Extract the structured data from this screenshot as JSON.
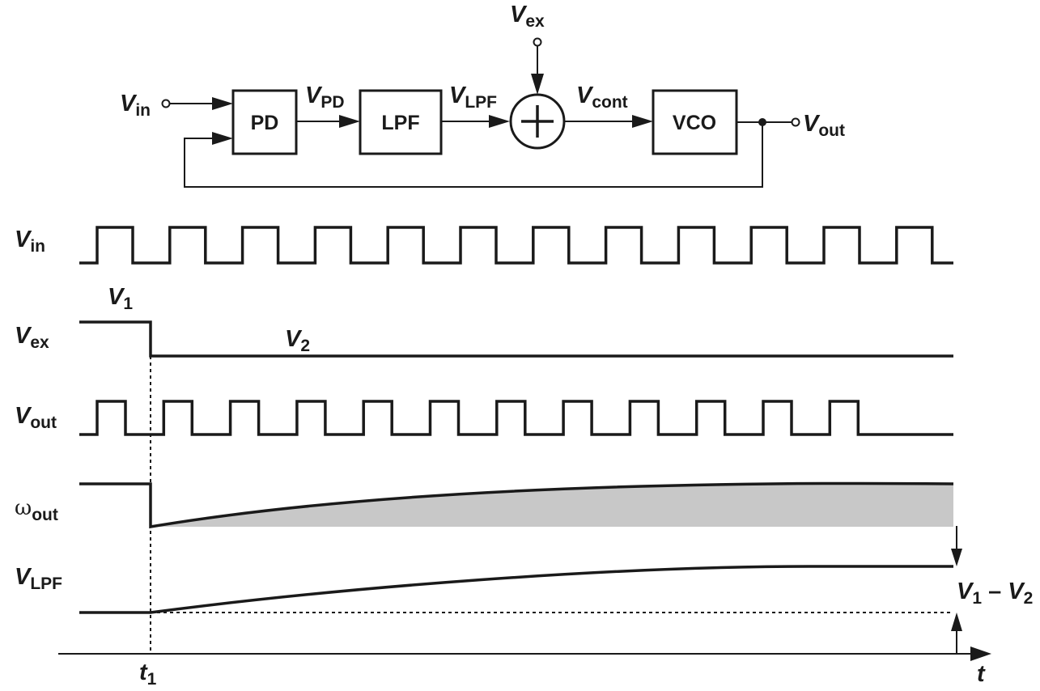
{
  "block_diagram": {
    "blocks": {
      "pd": "PD",
      "lpf": "LPF",
      "vco": "VCO"
    },
    "signals": {
      "vin": {
        "main": "V",
        "sub": "in"
      },
      "vpd": {
        "main": "V",
        "sub": "PD"
      },
      "vlpf": {
        "main": "V",
        "sub": "LPF"
      },
      "vex": {
        "main": "V",
        "sub": "ex"
      },
      "vcont": {
        "main": "V",
        "sub": "cont"
      },
      "vout": {
        "main": "V",
        "sub": "out"
      }
    }
  },
  "waveforms": {
    "rows": {
      "vin": {
        "main": "V",
        "sub": "in"
      },
      "vex": {
        "main": "V",
        "sub": "ex"
      },
      "vout": {
        "main": "V",
        "sub": "out"
      },
      "wout": {
        "main": "ω",
        "sub": "out"
      },
      "vlpf": {
        "main": "V",
        "sub": "LPF"
      }
    },
    "vex_levels": {
      "v1": {
        "main": "V",
        "sub": "1"
      },
      "v2": {
        "main": "V",
        "sub": "2"
      }
    },
    "delta": {
      "a": "V",
      "a_sub": "1",
      "sep": " – ",
      "b": "V",
      "b_sub": "2"
    },
    "time_axis": {
      "label": "t",
      "marker": {
        "main": "t",
        "sub": "1"
      }
    },
    "vin_pulses": 12,
    "vout_pulses": 12
  },
  "colors": {
    "ink": "#1a1a1a",
    "shade": "#c8c8c8"
  }
}
